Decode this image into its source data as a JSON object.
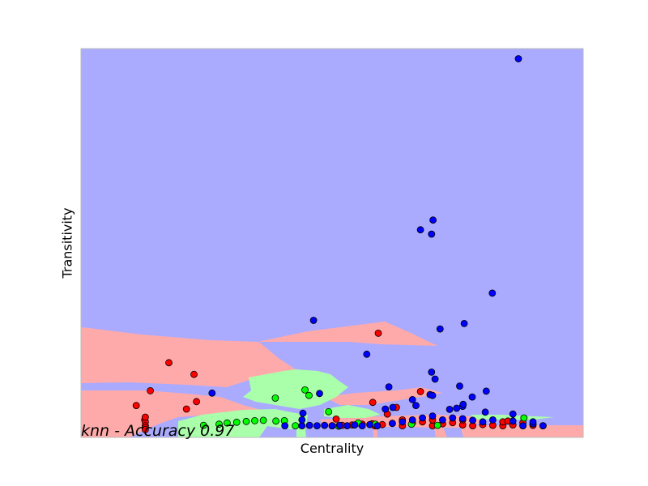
{
  "chart_data": {
    "type": "scatter",
    "title": "knn - Accuracy 0.97",
    "xlabel": "Centrality",
    "ylabel": "Transitivity",
    "xlim": [
      0,
      1
    ],
    "ylim": [
      0,
      1
    ],
    "ticks_visible": false,
    "grid": false,
    "legend": "none",
    "colors": {
      "class_red": "#ff0000",
      "class_green": "#00ff00",
      "class_blue": "#0000ff",
      "region_red": "#ffaaaa",
      "region_green": "#aaffaa",
      "region_blue": "#aaaaff",
      "border": "#bbbbbb"
    },
    "series": [
      {
        "class": "red",
        "points": [
          [
            0.127,
            0.045
          ],
          [
            0.175,
            0.192
          ],
          [
            0.225,
            0.162
          ],
          [
            0.138,
            0.12
          ],
          [
            0.11,
            0.082
          ],
          [
            0.23,
            0.092
          ],
          [
            0.21,
            0.073
          ],
          [
            0.128,
            0.04
          ],
          [
            0.128,
            0.052
          ],
          [
            0.128,
            0.03
          ],
          [
            0.128,
            0.025
          ],
          [
            0.128,
            0.02
          ],
          [
            0.592,
            0.268
          ],
          [
            0.581,
            0.09
          ],
          [
            0.628,
            0.077
          ],
          [
            0.676,
            0.118
          ],
          [
            0.508,
            0.047
          ],
          [
            0.58,
            0.035
          ],
          [
            0.585,
            0.03
          ],
          [
            0.6,
            0.033
          ],
          [
            0.62,
            0.036
          ],
          [
            0.64,
            0.03
          ],
          [
            0.66,
            0.038
          ],
          [
            0.68,
            0.04
          ],
          [
            0.7,
            0.03
          ],
          [
            0.72,
            0.035
          ],
          [
            0.74,
            0.038
          ],
          [
            0.76,
            0.032
          ],
          [
            0.78,
            0.03
          ],
          [
            0.8,
            0.033
          ],
          [
            0.82,
            0.031
          ],
          [
            0.84,
            0.03
          ],
          [
            0.86,
            0.032
          ],
          [
            0.88,
            0.03
          ],
          [
            0.9,
            0.031
          ],
          [
            0.92,
            0.03
          ],
          [
            0.84,
            0.04
          ],
          [
            0.56,
            0.034
          ],
          [
            0.54,
            0.032
          ],
          [
            0.52,
            0.031
          ],
          [
            0.5,
            0.03
          ],
          [
            0.61,
            0.06
          ],
          [
            0.7,
            0.045
          ],
          [
            0.76,
            0.045
          ],
          [
            0.64,
            0.045
          ],
          [
            0.85,
            0.042
          ],
          [
            0.88,
            0.038
          ]
        ]
      },
      {
        "class": "green",
        "points": [
          [
            0.244,
            0.031
          ],
          [
            0.275,
            0.034
          ],
          [
            0.291,
            0.037
          ],
          [
            0.31,
            0.039
          ],
          [
            0.329,
            0.041
          ],
          [
            0.346,
            0.043
          ],
          [
            0.363,
            0.044
          ],
          [
            0.388,
            0.042
          ],
          [
            0.405,
            0.043
          ],
          [
            0.387,
            0.101
          ],
          [
            0.446,
            0.122
          ],
          [
            0.454,
            0.108
          ],
          [
            0.427,
            0.03
          ],
          [
            0.493,
            0.066
          ],
          [
            0.513,
            0.029
          ],
          [
            0.552,
            0.037
          ],
          [
            0.586,
            0.034
          ],
          [
            0.658,
            0.034
          ],
          [
            0.71,
            0.031
          ],
          [
            0.882,
            0.05
          ]
        ]
      },
      {
        "class": "blue",
        "points": [
          [
            0.871,
            0.974
          ],
          [
            0.701,
            0.559
          ],
          [
            0.698,
            0.523
          ],
          [
            0.676,
            0.534
          ],
          [
            0.819,
            0.371
          ],
          [
            0.463,
            0.301
          ],
          [
            0.763,
            0.293
          ],
          [
            0.715,
            0.279
          ],
          [
            0.569,
            0.214
          ],
          [
            0.698,
            0.168
          ],
          [
            0.705,
            0.15
          ],
          [
            0.613,
            0.13
          ],
          [
            0.754,
            0.132
          ],
          [
            0.807,
            0.119
          ],
          [
            0.779,
            0.104
          ],
          [
            0.261,
            0.114
          ],
          [
            0.475,
            0.113
          ],
          [
            0.66,
            0.097
          ],
          [
            0.606,
            0.073
          ],
          [
            0.621,
            0.077
          ],
          [
            0.667,
            0.082
          ],
          [
            0.734,
            0.072
          ],
          [
            0.748,
            0.075
          ],
          [
            0.76,
            0.08
          ],
          [
            0.761,
            0.085
          ],
          [
            0.805,
            0.065
          ],
          [
            0.695,
            0.11
          ],
          [
            0.7,
            0.108
          ],
          [
            0.44,
            0.03
          ],
          [
            0.455,
            0.031
          ],
          [
            0.47,
            0.03
          ],
          [
            0.485,
            0.031
          ],
          [
            0.5,
            0.03
          ],
          [
            0.515,
            0.031
          ],
          [
            0.53,
            0.03
          ],
          [
            0.545,
            0.032
          ],
          [
            0.56,
            0.03
          ],
          [
            0.575,
            0.033
          ],
          [
            0.59,
            0.03
          ],
          [
            0.62,
            0.036
          ],
          [
            0.64,
            0.04
          ],
          [
            0.66,
            0.045
          ],
          [
            0.68,
            0.05
          ],
          [
            0.7,
            0.055
          ],
          [
            0.72,
            0.045
          ],
          [
            0.74,
            0.05
          ],
          [
            0.76,
            0.048
          ],
          [
            0.78,
            0.044
          ],
          [
            0.8,
            0.04
          ],
          [
            0.82,
            0.045
          ],
          [
            0.86,
            0.042
          ],
          [
            0.88,
            0.03
          ],
          [
            0.9,
            0.035
          ],
          [
            0.92,
            0.03
          ],
          [
            0.86,
            0.06
          ],
          [
            0.9,
            0.04
          ],
          [
            0.406,
            0.03
          ],
          [
            0.442,
            0.062
          ],
          [
            0.44,
            0.045
          ]
        ]
      }
    ]
  }
}
